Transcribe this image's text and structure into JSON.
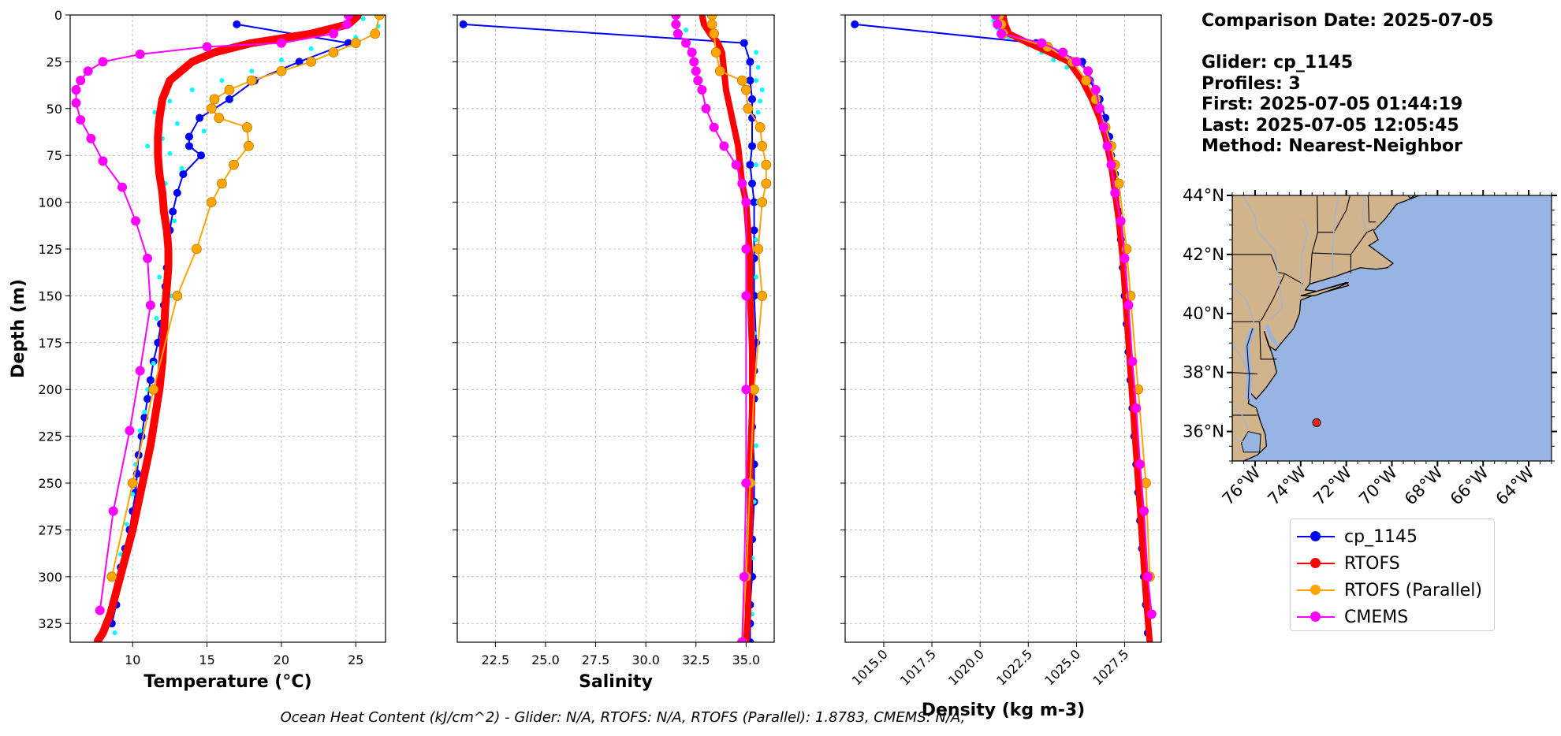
{
  "info": {
    "comparison_date": "Comparison Date: 2025-07-05",
    "glider": "Glider: cp_1145",
    "profiles": "Profiles: 3",
    "first": "First: 2025-07-05 01:44:19",
    "last": "Last: 2025-07-05 12:05:45",
    "method": "Method: Nearest-Neighbor"
  },
  "footer": "Ocean Heat Content (kJ/cm^2) - Glider: N/A,  RTOFS: N/A,  RTOFS (Parallel): 1.8783,  CMEMS: N/A,",
  "legend": [
    {
      "name": "cp_1145",
      "color": "#0000ff"
    },
    {
      "name": "RTOFS",
      "color": "#ff0000"
    },
    {
      "name": "RTOFS (Parallel)",
      "color": "#ffa500"
    },
    {
      "name": "CMEMS",
      "color": "#ff00ff"
    }
  ],
  "map": {
    "lat_labels": [
      "44°N",
      "42°N",
      "40°N",
      "38°N",
      "36°N"
    ],
    "lon_labels": [
      "76°W",
      "74°W",
      "72°W",
      "70°W",
      "68°W",
      "66°W",
      "64°W"
    ],
    "land_color": "#d2b48c",
    "ocean_color": "#98b4e2",
    "marker": {
      "lon": -73.3,
      "lat": 36.3,
      "color": "#ff2020"
    }
  },
  "chart_data": [
    {
      "type": "line",
      "xlabel": "Temperature (°C)",
      "ylabel": "Depth (m)",
      "xlim": [
        5.8,
        27.0
      ],
      "ylim": [
        335,
        0
      ],
      "xticks": [
        10,
        15,
        20,
        25
      ],
      "yticks": [
        0,
        25,
        50,
        75,
        100,
        125,
        150,
        175,
        200,
        225,
        250,
        275,
        300,
        325
      ],
      "grid": true,
      "series": [
        {
          "name": "cp_1145",
          "color": "#0000ff",
          "width": 2,
          "marker": 5,
          "x": [
            17.0,
            24.5,
            21.2,
            18.2,
            16.5,
            14.5,
            13.8,
            13.8,
            14.6,
            13.4,
            13.0,
            12.7,
            12.5,
            12.4,
            12.3,
            12.2,
            12.1,
            11.9,
            11.7,
            11.4,
            11.2,
            11.0,
            10.8,
            10.6,
            10.4,
            10.3,
            10.2,
            10.0,
            9.8,
            9.5,
            9.2,
            8.9,
            8.6
          ],
          "y": [
            5,
            15,
            25,
            35,
            45,
            55,
            65,
            70,
            75,
            85,
            95,
            105,
            115,
            125,
            135,
            145,
            155,
            165,
            175,
            185,
            195,
            205,
            215,
            225,
            235,
            245,
            255,
            265,
            275,
            285,
            295,
            315,
            325
          ]
        },
        {
          "name": "cp_1145 (profile 2)",
          "color": "#00ffff",
          "width": 0,
          "marker": 3,
          "dots": true,
          "x": [
            25.5,
            26.5,
            25.0,
            22.0,
            20.0,
            18.0,
            16.0,
            14.0,
            12.5,
            11.5,
            13.0,
            14.8,
            12.0,
            11.0,
            12.5,
            13.3,
            12.2,
            12.0,
            12.8,
            12.3,
            12.4,
            11.8,
            12.6,
            11.6,
            12.0,
            11.4,
            11.0,
            10.8,
            10.5,
            10.2,
            10.0,
            9.6,
            9.2,
            9.0,
            8.8
          ],
          "y": [
            2,
            6,
            12,
            18,
            24,
            30,
            35,
            40,
            46,
            52,
            58,
            62,
            66,
            70,
            74,
            82,
            90,
            100,
            110,
            118,
            128,
            140,
            150,
            162,
            172,
            186,
            200,
            212,
            222,
            240,
            256,
            272,
            288,
            305,
            330
          ]
        },
        {
          "name": "RTOFS",
          "color": "#ff0000",
          "width": 10,
          "marker": 4,
          "x": [
            25.2,
            24.5,
            22.0,
            18.0,
            15.5,
            14.0,
            12.5,
            12.0,
            11.8,
            11.7,
            11.7,
            11.8,
            12.0,
            12.1,
            12.3,
            12.4,
            12.4,
            12.3,
            12.2,
            12.1,
            12.0,
            11.8,
            11.5,
            11.2,
            10.8,
            10.4,
            10.0,
            9.5,
            9.0,
            8.5,
            8.0,
            7.6
          ],
          "y": [
            0,
            5,
            10,
            15,
            20,
            25,
            35,
            45,
            55,
            65,
            75,
            85,
            95,
            105,
            115,
            125,
            135,
            145,
            155,
            170,
            185,
            200,
            215,
            230,
            245,
            260,
            275,
            290,
            305,
            320,
            330,
            335
          ]
        },
        {
          "name": "RTOFS (Parallel)",
          "color": "#ffa500",
          "width": 2,
          "marker": 6,
          "x": [
            26.6,
            26.3,
            25.0,
            23.5,
            22.0,
            20.0,
            18.0,
            16.5,
            15.5,
            15.3,
            15.8,
            17.7,
            17.8,
            16.8,
            16.0,
            15.3,
            14.3,
            13.0,
            11.4,
            10.0,
            8.6
          ],
          "y": [
            0,
            10,
            15,
            20,
            25,
            30,
            35,
            40,
            45,
            50,
            55,
            60,
            70,
            80,
            90,
            100,
            125,
            150,
            200,
            250,
            300
          ]
        },
        {
          "name": "CMEMS",
          "color": "#ff00ff",
          "width": 2,
          "marker": 6,
          "x": [
            24.5,
            24.4,
            23.5,
            20.0,
            15.0,
            10.5,
            8.0,
            7.0,
            6.5,
            6.2,
            6.2,
            6.5,
            7.2,
            8.0,
            9.3,
            10.2,
            11.0,
            11.2,
            10.5,
            9.8,
            8.7,
            7.8
          ],
          "y": [
            0,
            5,
            10,
            15,
            17,
            21,
            25,
            30,
            35,
            40,
            47,
            56,
            66,
            78,
            92,
            110,
            130,
            155,
            190,
            222,
            265,
            318
          ]
        }
      ]
    },
    {
      "type": "line",
      "xlabel": "Salinity",
      "ylabel": "",
      "xlim": [
        20.6,
        36.4
      ],
      "ylim": [
        335,
        0
      ],
      "xticks": [
        22.5,
        25.0,
        27.5,
        30.0,
        32.5,
        35.0
      ],
      "yticks": [
        0,
        25,
        50,
        75,
        100,
        125,
        150,
        175,
        200,
        225,
        250,
        275,
        300,
        325
      ],
      "grid": true,
      "series": [
        {
          "name": "cp_1145",
          "color": "#0000ff",
          "width": 2,
          "marker": 5,
          "x": [
            20.9,
            34.9,
            35.2,
            35.2,
            35.3,
            35.3,
            35.3,
            35.2,
            35.3,
            35.4,
            35.4,
            35.4,
            35.4,
            35.5,
            35.4,
            35.4,
            35.3,
            35.4,
            35.4,
            35.3,
            35.3,
            35.2,
            35.2,
            35.2
          ],
          "y": [
            5,
            15,
            25,
            35,
            45,
            55,
            70,
            80,
            90,
            100,
            115,
            130,
            150,
            175,
            190,
            205,
            220,
            240,
            260,
            280,
            300,
            315,
            325,
            335
          ]
        },
        {
          "name": "cp_1145 (profile 2)",
          "color": "#00ffff",
          "width": 0,
          "marker": 3,
          "dots": true,
          "x": [
            31.5,
            32.0,
            33.5,
            35.5,
            35.6,
            35.5,
            35.8,
            35.7,
            35.6,
            35.6,
            35.5,
            35.6,
            35.5,
            35.5,
            35.4,
            35.4,
            35.5,
            35.4,
            35.3,
            35.3
          ],
          "y": [
            3,
            8,
            14,
            20,
            28,
            35,
            40,
            46,
            52,
            60,
            80,
            100,
            120,
            140,
            170,
            200,
            230,
            260,
            290,
            320
          ]
        },
        {
          "name": "RTOFS",
          "color": "#ff0000",
          "width": 8,
          "marker": 3,
          "x": [
            32.8,
            32.9,
            33.2,
            33.6,
            33.8,
            33.9,
            34.0,
            34.2,
            34.4,
            34.6,
            34.7,
            34.8,
            35.0,
            35.1,
            35.2,
            35.2,
            35.3,
            35.3,
            35.2,
            35.2,
            35.1,
            35.1,
            35.0
          ],
          "y": [
            0,
            5,
            10,
            15,
            20,
            30,
            40,
            50,
            60,
            70,
            80,
            90,
            100,
            115,
            130,
            150,
            180,
            210,
            240,
            270,
            300,
            320,
            335
          ]
        },
        {
          "name": "RTOFS (Parallel)",
          "color": "#ffa500",
          "width": 2,
          "marker": 6,
          "x": [
            33.3,
            33.3,
            33.4,
            33.5,
            33.7,
            34.8,
            35.0,
            35.1,
            35.7,
            35.8,
            36.0,
            36.0,
            35.8,
            35.6,
            35.8,
            35.4,
            35.2,
            35.0,
            34.8
          ],
          "y": [
            0,
            5,
            10,
            20,
            30,
            35,
            40,
            50,
            60,
            70,
            80,
            90,
            100,
            125,
            150,
            200,
            250,
            300,
            335
          ]
        },
        {
          "name": "CMEMS",
          "color": "#ff00ff",
          "width": 2,
          "marker": 6,
          "x": [
            31.5,
            31.5,
            31.6,
            32.0,
            32.3,
            32.4,
            32.5,
            32.6,
            32.8,
            33.0,
            33.4,
            33.9,
            34.5,
            34.8,
            35.0,
            35.0,
            35.0,
            35.0,
            35.0,
            34.9,
            34.8
          ],
          "y": [
            0,
            5,
            10,
            15,
            20,
            25,
            30,
            35,
            40,
            50,
            60,
            70,
            80,
            90,
            100,
            125,
            150,
            200,
            250,
            300,
            335
          ]
        }
      ]
    },
    {
      "type": "line",
      "xlabel": "Density (kg m-3)",
      "ylabel": "",
      "xlim": [
        1013.0,
        1029.4
      ],
      "ylim": [
        335,
        0
      ],
      "xticks": [
        1015.0,
        1017.5,
        1020.0,
        1022.5,
        1025.0,
        1027.5
      ],
      "yticks": [
        0,
        25,
        50,
        75,
        100,
        125,
        150,
        175,
        200,
        225,
        250,
        275,
        300,
        325
      ],
      "grid": true,
      "series": [
        {
          "name": "cp_1145",
          "color": "#0000ff",
          "width": 2,
          "marker": 5,
          "x": [
            1013.5,
            1022.9,
            1025.3,
            1025.7,
            1026.2,
            1026.5,
            1026.7,
            1026.8,
            1027.0,
            1027.1,
            1027.2,
            1027.3,
            1027.4,
            1027.5,
            1027.6,
            1027.7,
            1027.8,
            1027.9,
            1028.0,
            1028.1,
            1028.2,
            1028.3,
            1028.4,
            1028.5,
            1028.6,
            1028.7
          ],
          "y": [
            5,
            15,
            25,
            35,
            45,
            55,
            65,
            75,
            85,
            95,
            105,
            120,
            135,
            150,
            165,
            180,
            195,
            210,
            225,
            240,
            255,
            270,
            285,
            300,
            315,
            330
          ]
        },
        {
          "name": "cp_1145 (profile 2)",
          "color": "#00ffff",
          "width": 0,
          "marker": 3,
          "dots": true,
          "x": [
            1020.7,
            1020.9,
            1021.5,
            1022.5,
            1023.2,
            1023.8,
            1024.5
          ],
          "y": [
            3,
            7,
            12,
            16,
            20,
            24,
            28
          ]
        },
        {
          "name": "RTOFS",
          "color": "#ff0000",
          "width": 8,
          "marker": 3,
          "x": [
            1021.2,
            1021.3,
            1021.5,
            1022.5,
            1023.6,
            1024.6,
            1025.3,
            1025.8,
            1026.2,
            1026.5,
            1026.8,
            1027.0,
            1027.2,
            1027.4,
            1027.6,
            1027.8,
            1028.0,
            1028.2,
            1028.4,
            1028.6,
            1028.8
          ],
          "y": [
            0,
            5,
            10,
            15,
            20,
            25,
            35,
            45,
            55,
            65,
            80,
            95,
            110,
            130,
            160,
            190,
            220,
            250,
            280,
            310,
            335
          ]
        },
        {
          "name": "RTOFS (Parallel)",
          "color": "#ffa500",
          "width": 2,
          "marker": 6,
          "x": [
            1021.0,
            1021.1,
            1021.2,
            1023.5,
            1024.8,
            1025.5,
            1026.0,
            1026.5,
            1026.8,
            1027.0,
            1027.2,
            1027.6,
            1027.8,
            1028.2,
            1028.6,
            1028.8
          ],
          "y": [
            0,
            5,
            10,
            17,
            25,
            35,
            45,
            60,
            70,
            80,
            90,
            125,
            150,
            200,
            250,
            300
          ]
        },
        {
          "name": "CMEMS",
          "color": "#ff00ff",
          "width": 2,
          "marker": 6,
          "x": [
            1020.8,
            1020.9,
            1021.1,
            1023.2,
            1024.3,
            1025.0,
            1025.6,
            1026.0,
            1026.2,
            1026.4,
            1026.6,
            1026.8,
            1027.0,
            1027.3,
            1027.5,
            1027.7,
            1027.9,
            1028.1,
            1028.3,
            1028.5,
            1028.7,
            1028.9
          ],
          "y": [
            0,
            5,
            10,
            15,
            20,
            25,
            30,
            40,
            50,
            60,
            70,
            80,
            95,
            110,
            130,
            155,
            185,
            210,
            240,
            265,
            300,
            320
          ]
        }
      ]
    }
  ]
}
